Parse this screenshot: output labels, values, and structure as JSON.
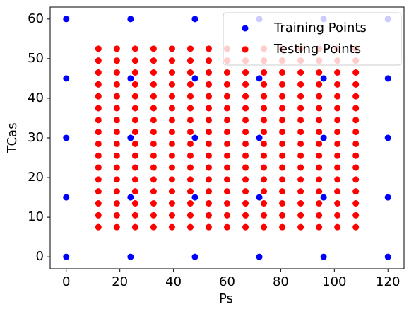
{
  "chart_data": {
    "type": "scatter",
    "xlabel": "Ps",
    "ylabel": "TCas",
    "xlim": [
      -6,
      126
    ],
    "ylim": [
      -3,
      63
    ],
    "xticks": [
      0,
      20,
      40,
      60,
      80,
      100,
      120
    ],
    "yticks": [
      0,
      10,
      20,
      30,
      40,
      50,
      60
    ],
    "legend": "upper right",
    "series": [
      {
        "name": "Training Points",
        "color": "#0000ff",
        "x": [
          0,
          0,
          0,
          0,
          0,
          24,
          24,
          24,
          24,
          24,
          48,
          48,
          48,
          48,
          48,
          72,
          72,
          72,
          72,
          72,
          96,
          96,
          96,
          96,
          96,
          120,
          120,
          120,
          120,
          120
        ],
        "values": [
          0,
          15,
          30,
          45,
          60,
          0,
          15,
          30,
          45,
          60,
          0,
          15,
          30,
          45,
          60,
          0,
          15,
          30,
          45,
          60,
          0,
          15,
          30,
          45,
          60,
          0,
          15,
          30,
          45,
          60
        ]
      },
      {
        "name": "Testing Points",
        "color": "#ff0000",
        "x": [
          12,
          12,
          12,
          12,
          12,
          12,
          12,
          12,
          12,
          12,
          12,
          12,
          12,
          12,
          12,
          12,
          18.86,
          18.86,
          18.86,
          18.86,
          18.86,
          18.86,
          18.86,
          18.86,
          18.86,
          18.86,
          18.86,
          18.86,
          18.86,
          18.86,
          18.86,
          18.86,
          25.71,
          25.71,
          25.71,
          25.71,
          25.71,
          25.71,
          25.71,
          25.71,
          25.71,
          25.71,
          25.71,
          25.71,
          25.71,
          25.71,
          25.71,
          25.71,
          32.57,
          32.57,
          32.57,
          32.57,
          32.57,
          32.57,
          32.57,
          32.57,
          32.57,
          32.57,
          32.57,
          32.57,
          32.57,
          32.57,
          32.57,
          32.57,
          39.43,
          39.43,
          39.43,
          39.43,
          39.43,
          39.43,
          39.43,
          39.43,
          39.43,
          39.43,
          39.43,
          39.43,
          39.43,
          39.43,
          39.43,
          39.43,
          46.29,
          46.29,
          46.29,
          46.29,
          46.29,
          46.29,
          46.29,
          46.29,
          46.29,
          46.29,
          46.29,
          46.29,
          46.29,
          46.29,
          46.29,
          46.29,
          53.14,
          53.14,
          53.14,
          53.14,
          53.14,
          53.14,
          53.14,
          53.14,
          53.14,
          53.14,
          53.14,
          53.14,
          53.14,
          53.14,
          53.14,
          53.14,
          60,
          60,
          60,
          60,
          60,
          60,
          60,
          60,
          60,
          60,
          60,
          60,
          60,
          60,
          60,
          60,
          66.86,
          66.86,
          66.86,
          66.86,
          66.86,
          66.86,
          66.86,
          66.86,
          66.86,
          66.86,
          66.86,
          66.86,
          66.86,
          66.86,
          66.86,
          66.86,
          73.71,
          73.71,
          73.71,
          73.71,
          73.71,
          73.71,
          73.71,
          73.71,
          73.71,
          73.71,
          73.71,
          73.71,
          73.71,
          73.71,
          73.71,
          73.71,
          80.57,
          80.57,
          80.57,
          80.57,
          80.57,
          80.57,
          80.57,
          80.57,
          80.57,
          80.57,
          80.57,
          80.57,
          80.57,
          80.57,
          80.57,
          80.57,
          87.43,
          87.43,
          87.43,
          87.43,
          87.43,
          87.43,
          87.43,
          87.43,
          87.43,
          87.43,
          87.43,
          87.43,
          87.43,
          87.43,
          87.43,
          87.43,
          94.29,
          94.29,
          94.29,
          94.29,
          94.29,
          94.29,
          94.29,
          94.29,
          94.29,
          94.29,
          94.29,
          94.29,
          94.29,
          94.29,
          94.29,
          94.29,
          101.14,
          101.14,
          101.14,
          101.14,
          101.14,
          101.14,
          101.14,
          101.14,
          101.14,
          101.14,
          101.14,
          101.14,
          101.14,
          101.14,
          101.14,
          101.14,
          108,
          108,
          108,
          108,
          108,
          108,
          108,
          108,
          108,
          108,
          108,
          108,
          108,
          108,
          108,
          108
        ],
        "values": [
          7.5,
          10.5,
          13.5,
          16.5,
          19.5,
          22.5,
          25.5,
          28.5,
          31.5,
          34.5,
          37.5,
          40.5,
          43.5,
          46.5,
          49.5,
          52.5,
          7.5,
          10.5,
          13.5,
          16.5,
          19.5,
          22.5,
          25.5,
          28.5,
          31.5,
          34.5,
          37.5,
          40.5,
          43.5,
          46.5,
          49.5,
          52.5,
          7.5,
          10.5,
          13.5,
          16.5,
          19.5,
          22.5,
          25.5,
          28.5,
          31.5,
          34.5,
          37.5,
          40.5,
          43.5,
          46.5,
          49.5,
          52.5,
          7.5,
          10.5,
          13.5,
          16.5,
          19.5,
          22.5,
          25.5,
          28.5,
          31.5,
          34.5,
          37.5,
          40.5,
          43.5,
          46.5,
          49.5,
          52.5,
          7.5,
          10.5,
          13.5,
          16.5,
          19.5,
          22.5,
          25.5,
          28.5,
          31.5,
          34.5,
          37.5,
          40.5,
          43.5,
          46.5,
          49.5,
          52.5,
          7.5,
          10.5,
          13.5,
          16.5,
          19.5,
          22.5,
          25.5,
          28.5,
          31.5,
          34.5,
          37.5,
          40.5,
          43.5,
          46.5,
          49.5,
          52.5,
          7.5,
          10.5,
          13.5,
          16.5,
          19.5,
          22.5,
          25.5,
          28.5,
          31.5,
          34.5,
          37.5,
          40.5,
          43.5,
          46.5,
          49.5,
          52.5,
          7.5,
          10.5,
          13.5,
          16.5,
          19.5,
          22.5,
          25.5,
          28.5,
          31.5,
          34.5,
          37.5,
          40.5,
          43.5,
          46.5,
          49.5,
          52.5,
          7.5,
          10.5,
          13.5,
          16.5,
          19.5,
          22.5,
          25.5,
          28.5,
          31.5,
          34.5,
          37.5,
          40.5,
          43.5,
          46.5,
          49.5,
          52.5,
          7.5,
          10.5,
          13.5,
          16.5,
          19.5,
          22.5,
          25.5,
          28.5,
          31.5,
          34.5,
          37.5,
          40.5,
          43.5,
          46.5,
          49.5,
          52.5,
          7.5,
          10.5,
          13.5,
          16.5,
          19.5,
          22.5,
          25.5,
          28.5,
          31.5,
          34.5,
          37.5,
          40.5,
          43.5,
          46.5,
          49.5,
          52.5,
          7.5,
          10.5,
          13.5,
          16.5,
          19.5,
          22.5,
          25.5,
          28.5,
          31.5,
          34.5,
          37.5,
          40.5,
          43.5,
          46.5,
          49.5,
          52.5,
          7.5,
          10.5,
          13.5,
          16.5,
          19.5,
          22.5,
          25.5,
          28.5,
          31.5,
          34.5,
          37.5,
          40.5,
          43.5,
          46.5,
          49.5,
          52.5,
          7.5,
          10.5,
          13.5,
          16.5,
          19.5,
          22.5,
          25.5,
          28.5,
          31.5,
          34.5,
          37.5,
          40.5,
          43.5,
          46.5,
          49.5,
          52.5,
          7.5,
          10.5,
          13.5,
          16.5,
          19.5,
          22.5,
          25.5,
          28.5,
          31.5,
          34.5,
          37.5,
          40.5,
          43.5,
          46.5,
          49.5,
          52.5
        ]
      }
    ]
  }
}
